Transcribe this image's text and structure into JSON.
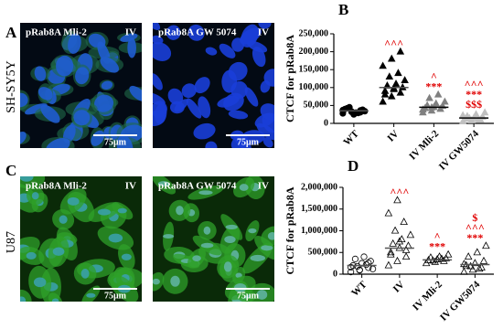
{
  "panels": [
    {
      "letter": "A",
      "cell_line": "SH-SY5Y",
      "images": [
        {
          "label": "pRab8A Mli-2",
          "group": "IV",
          "scale": "75μm"
        },
        {
          "label": "pRab8A GW 5074",
          "group": "IV",
          "scale": "75μm"
        }
      ]
    },
    {
      "letter": "C",
      "cell_line": "U87",
      "images": [
        {
          "label": "pRab8A Mli-2",
          "group": "IV",
          "scale": "75μm"
        },
        {
          "label": "pRab8A GW 5074",
          "group": "IV",
          "scale": "75μm"
        }
      ]
    }
  ],
  "chart_data": [
    {
      "type": "dot",
      "letter": "B",
      "y_label": "CTCF for pRab8A",
      "categories": [
        "WT",
        "IV",
        "IV Mli-2",
        "IV GW5074"
      ],
      "ylim": [
        0,
        250000
      ],
      "yticks": [
        {
          "value": 0,
          "label": "0"
        },
        {
          "value": 50000,
          "label": "50,000"
        },
        {
          "value": 100000,
          "label": "100,000"
        },
        {
          "value": 150000,
          "label": "150,000"
        },
        {
          "value": 200000,
          "label": "200,000"
        },
        {
          "value": 250000,
          "label": "250,000"
        }
      ],
      "groups": [
        {
          "marker": "circle",
          "filled": true,
          "color": "#000000",
          "mean": 35000,
          "values": [
            28000,
            32000,
            36000,
            40000,
            25000,
            38000,
            42000,
            30000,
            34000,
            45000,
            29000,
            37000,
            33000,
            31000
          ],
          "annotations": []
        },
        {
          "marker": "triangle",
          "filled": true,
          "color": "#000000",
          "mean": 100000,
          "values": [
            60000,
            75000,
            85000,
            90000,
            95000,
            100000,
            105000,
            110000,
            120000,
            130000,
            140000,
            160000,
            180000,
            200000,
            80000,
            98000
          ],
          "annotations": [
            "^^^"
          ]
        },
        {
          "marker": "triangle",
          "filled": true,
          "color": "#808080",
          "mean": 45000,
          "values": [
            30000,
            35000,
            40000,
            42000,
            45000,
            48000,
            50000,
            55000,
            60000,
            70000,
            80000,
            38000,
            44000
          ],
          "annotations": [
            "^",
            "***"
          ]
        },
        {
          "marker": "triangle",
          "filled": true,
          "color": "#c0c0c0",
          "mean": 15000,
          "values": [
            5000,
            8000,
            10000,
            12000,
            15000,
            18000,
            20000,
            25000,
            30000,
            14000,
            11000,
            22000
          ],
          "annotations": [
            "^^^",
            "***",
            "$$$"
          ]
        }
      ],
      "annotation_color": "#e00000"
    },
    {
      "type": "dot",
      "letter": "D",
      "y_label": "CTCF for pRab8A",
      "categories": [
        "WT",
        "IV",
        "IV Mli-2",
        "IV GW5074"
      ],
      "ylim": [
        0,
        2000000
      ],
      "yticks": [
        {
          "value": 0,
          "label": "0"
        },
        {
          "value": 500000,
          "label": "500,000"
        },
        {
          "value": 1000000,
          "label": "1,000,000"
        },
        {
          "value": 1500000,
          "label": "1,500,000"
        },
        {
          "value": 2000000,
          "label": "2,000,000"
        }
      ],
      "groups": [
        {
          "marker": "circle",
          "filled": false,
          "color": "#000000",
          "mean": 200000,
          "values": [
            50000,
            100000,
            150000,
            200000,
            250000,
            300000,
            350000,
            400000,
            120000,
            180000,
            220000,
            160000,
            90000,
            260000
          ],
          "annotations": []
        },
        {
          "marker": "triangle",
          "filled": false,
          "color": "#000000",
          "mean": 600000,
          "values": [
            200000,
            300000,
            400000,
            500000,
            600000,
            650000,
            700000,
            800000,
            900000,
            1000000,
            1200000,
            1400000,
            1700000,
            550000,
            450000,
            750000
          ],
          "annotations": [
            "^^^"
          ]
        },
        {
          "marker": "triangle",
          "filled": false,
          "color": "#000000",
          "mean": 330000,
          "values": [
            250000,
            280000,
            300000,
            320000,
            340000,
            360000,
            380000,
            400000,
            450000,
            310000,
            350000
          ],
          "annotations": [
            "^",
            "***"
          ]
        },
        {
          "marker": "triangle",
          "filled": false,
          "color": "#000000",
          "mean": 220000,
          "values": [
            50000,
            100000,
            150000,
            200000,
            250000,
            300000,
            400000,
            500000,
            650000,
            180000,
            120000,
            230000
          ],
          "annotations": [
            "$",
            "^^^",
            "***"
          ]
        }
      ],
      "annotation_color": "#e00000"
    }
  ]
}
